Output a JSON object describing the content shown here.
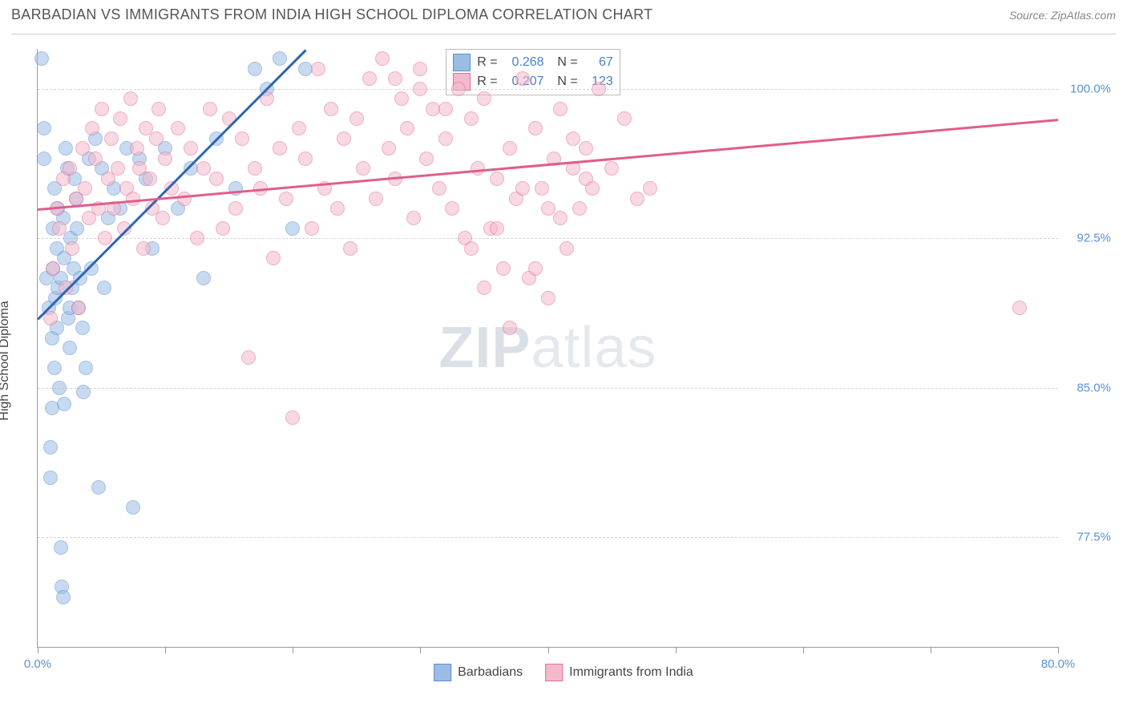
{
  "header": {
    "title": "BARBADIAN VS IMMIGRANTS FROM INDIA HIGH SCHOOL DIPLOMA CORRELATION CHART",
    "source": "Source: ZipAtlas.com"
  },
  "chart": {
    "type": "scatter",
    "ylabel": "High School Diploma",
    "xlim": [
      0,
      80
    ],
    "ylim": [
      72,
      102
    ],
    "yticks": [
      77.5,
      85.0,
      92.5,
      100.0
    ],
    "ytick_labels": [
      "77.5%",
      "85.0%",
      "92.5%",
      "100.0%"
    ],
    "xticks": [
      0,
      10,
      20,
      30,
      40,
      50,
      60,
      70,
      80
    ],
    "xtick_labels_show": {
      "0": "0.0%",
      "80": "80.0%"
    },
    "background_color": "#ffffff",
    "grid_color": "#d5d5d5",
    "marker_size": 18,
    "marker_opacity": 0.55,
    "series": [
      {
        "name": "Barbadians",
        "fill": "#9bbce4",
        "stroke": "#5b8fd6",
        "trend_color": "#2e66b3",
        "R": "0.268",
        "N": "67",
        "trend": {
          "x1": 0,
          "y1": 88.5,
          "x2": 21,
          "y2": 102
        },
        "points": [
          [
            0.3,
            101.5
          ],
          [
            0.5,
            98.0
          ],
          [
            0.5,
            96.5
          ],
          [
            0.7,
            90.5
          ],
          [
            0.9,
            89.0
          ],
          [
            1.0,
            82.0
          ],
          [
            1.0,
            80.5
          ],
          [
            1.1,
            87.5
          ],
          [
            1.1,
            84.0
          ],
          [
            1.2,
            91.0
          ],
          [
            1.2,
            93.0
          ],
          [
            1.3,
            95.0
          ],
          [
            1.3,
            86.0
          ],
          [
            1.4,
            89.5
          ],
          [
            1.5,
            92.0
          ],
          [
            1.5,
            88.0
          ],
          [
            1.6,
            90.0
          ],
          [
            1.6,
            94.0
          ],
          [
            1.7,
            85.0
          ],
          [
            1.8,
            90.5
          ],
          [
            1.8,
            77.0
          ],
          [
            1.9,
            75.0
          ],
          [
            2.0,
            74.5
          ],
          [
            2.0,
            93.5
          ],
          [
            2.1,
            91.5
          ],
          [
            2.1,
            84.2
          ],
          [
            2.2,
            97.0
          ],
          [
            2.3,
            96.0
          ],
          [
            2.4,
            88.5
          ],
          [
            2.5,
            89.0
          ],
          [
            2.5,
            87.0
          ],
          [
            2.6,
            92.5
          ],
          [
            2.7,
            90.0
          ],
          [
            2.8,
            91.0
          ],
          [
            2.9,
            95.5
          ],
          [
            3.0,
            94.5
          ],
          [
            3.1,
            93.0
          ],
          [
            3.2,
            89.0
          ],
          [
            3.3,
            90.5
          ],
          [
            3.5,
            88.0
          ],
          [
            3.6,
            84.8
          ],
          [
            3.8,
            86.0
          ],
          [
            4.0,
            96.5
          ],
          [
            4.2,
            91.0
          ],
          [
            4.5,
            97.5
          ],
          [
            4.8,
            80.0
          ],
          [
            5.0,
            96.0
          ],
          [
            5.2,
            90.0
          ],
          [
            5.5,
            93.5
          ],
          [
            6.0,
            95.0
          ],
          [
            6.5,
            94.0
          ],
          [
            7.0,
            97.0
          ],
          [
            7.5,
            79.0
          ],
          [
            8.0,
            96.5
          ],
          [
            8.5,
            95.5
          ],
          [
            9.0,
            92.0
          ],
          [
            10.0,
            97.0
          ],
          [
            11.0,
            94.0
          ],
          [
            12.0,
            96.0
          ],
          [
            13.0,
            90.5
          ],
          [
            14.0,
            97.5
          ],
          [
            15.5,
            95.0
          ],
          [
            17.0,
            101.0
          ],
          [
            18.0,
            100.0
          ],
          [
            19.0,
            101.5
          ],
          [
            20.0,
            93.0
          ],
          [
            21.0,
            101.0
          ]
        ]
      },
      {
        "name": "Immigrants from India",
        "fill": "#f4b9cb",
        "stroke": "#e46f96",
        "trend_color": "#e05e8a",
        "R": "0.207",
        "N": "123",
        "trend": {
          "x1": 0,
          "y1": 94.0,
          "x2": 80,
          "y2": 98.5
        },
        "points": [
          [
            1.0,
            88.5
          ],
          [
            1.2,
            91.0
          ],
          [
            1.5,
            94.0
          ],
          [
            1.7,
            93.0
          ],
          [
            2.0,
            95.5
          ],
          [
            2.2,
            90.0
          ],
          [
            2.5,
            96.0
          ],
          [
            2.7,
            92.0
          ],
          [
            3.0,
            94.5
          ],
          [
            3.2,
            89.0
          ],
          [
            3.5,
            97.0
          ],
          [
            3.7,
            95.0
          ],
          [
            4.0,
            93.5
          ],
          [
            4.3,
            98.0
          ],
          [
            4.5,
            96.5
          ],
          [
            4.8,
            94.0
          ],
          [
            5.0,
            99.0
          ],
          [
            5.3,
            92.5
          ],
          [
            5.5,
            95.5
          ],
          [
            5.8,
            97.5
          ],
          [
            6.0,
            94.0
          ],
          [
            6.3,
            96.0
          ],
          [
            6.5,
            98.5
          ],
          [
            6.8,
            93.0
          ],
          [
            7.0,
            95.0
          ],
          [
            7.3,
            99.5
          ],
          [
            7.5,
            94.5
          ],
          [
            7.8,
            97.0
          ],
          [
            8.0,
            96.0
          ],
          [
            8.3,
            92.0
          ],
          [
            8.5,
            98.0
          ],
          [
            8.8,
            95.5
          ],
          [
            9.0,
            94.0
          ],
          [
            9.3,
            97.5
          ],
          [
            9.5,
            99.0
          ],
          [
            9.8,
            93.5
          ],
          [
            10.0,
            96.5
          ],
          [
            10.5,
            95.0
          ],
          [
            11.0,
            98.0
          ],
          [
            11.5,
            94.5
          ],
          [
            12.0,
            97.0
          ],
          [
            12.5,
            92.5
          ],
          [
            13.0,
            96.0
          ],
          [
            13.5,
            99.0
          ],
          [
            14.0,
            95.5
          ],
          [
            14.5,
            93.0
          ],
          [
            15.0,
            98.5
          ],
          [
            15.5,
            94.0
          ],
          [
            16.0,
            97.5
          ],
          [
            16.5,
            86.5
          ],
          [
            17.0,
            96.0
          ],
          [
            17.5,
            95.0
          ],
          [
            18.0,
            99.5
          ],
          [
            18.5,
            91.5
          ],
          [
            19.0,
            97.0
          ],
          [
            19.5,
            94.5
          ],
          [
            20.0,
            83.5
          ],
          [
            20.5,
            98.0
          ],
          [
            21.0,
            96.5
          ],
          [
            21.5,
            93.0
          ],
          [
            22.0,
            101.0
          ],
          [
            22.5,
            95.0
          ],
          [
            23.0,
            99.0
          ],
          [
            23.5,
            94.0
          ],
          [
            24.0,
            97.5
          ],
          [
            24.5,
            92.0
          ],
          [
            25.0,
            98.5
          ],
          [
            25.5,
            96.0
          ],
          [
            26.0,
            100.5
          ],
          [
            26.5,
            94.5
          ],
          [
            27.0,
            101.5
          ],
          [
            27.5,
            97.0
          ],
          [
            28.0,
            95.5
          ],
          [
            28.5,
            99.5
          ],
          [
            29.0,
            98.0
          ],
          [
            29.5,
            93.5
          ],
          [
            30.0,
            101.0
          ],
          [
            30.5,
            96.5
          ],
          [
            31.0,
            99.0
          ],
          [
            31.5,
            95.0
          ],
          [
            32.0,
            97.5
          ],
          [
            32.5,
            94.0
          ],
          [
            33.0,
            100.0
          ],
          [
            33.5,
            92.5
          ],
          [
            34.0,
            98.5
          ],
          [
            34.5,
            96.0
          ],
          [
            35.0,
            99.5
          ],
          [
            35.5,
            93.0
          ],
          [
            36.0,
            95.5
          ],
          [
            36.5,
            91.0
          ],
          [
            37.0,
            97.0
          ],
          [
            37.5,
            94.5
          ],
          [
            38.0,
            100.5
          ],
          [
            38.5,
            90.5
          ],
          [
            39.0,
            98.0
          ],
          [
            39.5,
            95.0
          ],
          [
            40.0,
            89.5
          ],
          [
            40.5,
            96.5
          ],
          [
            41.0,
            99.0
          ],
          [
            41.5,
            92.0
          ],
          [
            42.0,
            97.5
          ],
          [
            42.5,
            94.0
          ],
          [
            43.0,
            95.5
          ],
          [
            43.5,
            95.0
          ],
          [
            44.0,
            100.0
          ],
          [
            45.0,
            96.0
          ],
          [
            46.0,
            98.5
          ],
          [
            47.0,
            94.5
          ],
          [
            48.0,
            95.0
          ],
          [
            34.0,
            92.0
          ],
          [
            35.0,
            90.0
          ],
          [
            36.0,
            93.0
          ],
          [
            38.0,
            95.0
          ],
          [
            40.0,
            94.0
          ],
          [
            42.0,
            96.0
          ],
          [
            37.0,
            88.0
          ],
          [
            39.0,
            91.0
          ],
          [
            41.0,
            93.5
          ],
          [
            43.0,
            97.0
          ],
          [
            77.0,
            89.0
          ],
          [
            28.0,
            100.5
          ],
          [
            30.0,
            100.0
          ],
          [
            32.0,
            99.0
          ]
        ]
      }
    ],
    "stats_box": {
      "rows": [
        {
          "swatch_fill": "#9bbce4",
          "swatch_stroke": "#5b8fd6",
          "R": "0.268",
          "N": "67"
        },
        {
          "swatch_fill": "#f4b9cb",
          "swatch_stroke": "#e46f96",
          "R": "0.207",
          "N": "123"
        }
      ]
    },
    "legend": [
      {
        "label": "Barbadians",
        "fill": "#9bbce4",
        "stroke": "#5b8fd6"
      },
      {
        "label": "Immigrants from India",
        "fill": "#f4b9cb",
        "stroke": "#e46f96"
      }
    ],
    "watermark": {
      "zip": "ZIP",
      "atlas": "atlas"
    }
  }
}
